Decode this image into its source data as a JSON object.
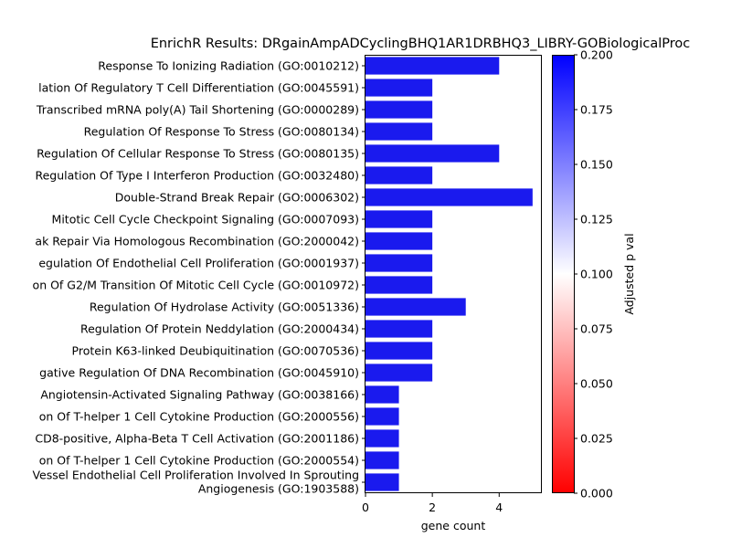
{
  "chart_data": {
    "type": "bar",
    "orientation": "horizontal",
    "title": "EnrichR Results: DRgainAmpADCyclingBHQ1AR1DRBHQ3_LIBRY-GOBiologicalProc",
    "xlabel": "gene count",
    "ylabel": "",
    "xlim": [
      0,
      5.25
    ],
    "xticks": [
      0,
      2,
      4
    ],
    "categories": [
      "Response To Ionizing Radiation (GO:0010212)",
      "lation Of Regulatory T Cell Differentiation (GO:0045591)",
      "Transcribed mRNA poly(A) Tail Shortening (GO:0000289)",
      "Regulation Of Response To Stress (GO:0080134)",
      "Regulation Of Cellular Response To Stress (GO:0080135)",
      "Regulation Of Type I Interferon Production (GO:0032480)",
      "Double-Strand Break Repair (GO:0006302)",
      "Mitotic Cell Cycle Checkpoint Signaling (GO:0007093)",
      "ak Repair Via Homologous Recombination (GO:2000042)",
      "egulation Of Endothelial Cell Proliferation (GO:0001937)",
      "on Of G2/M Transition Of Mitotic Cell Cycle (GO:0010972)",
      "Regulation Of Hydrolase Activity (GO:0051336)",
      "Regulation Of Protein Neddylation (GO:2000434)",
      "Protein K63-linked Deubiquitination (GO:0070536)",
      "gative Regulation Of DNA Recombination (GO:0045910)",
      "Angiotensin-Activated Signaling Pathway (GO:0038166)",
      "on Of T-helper 1 Cell Cytokine Production (GO:2000556)",
      "CD8-positive, Alpha-Beta T Cell Activation (GO:2001186)",
      "on Of T-helper 1 Cell Cytokine Production (GO:2000554)",
      "Vessel Endothelial Cell Proliferation Involved In Sprouting\nAngiogenesis (GO:1903588)"
    ],
    "values": [
      4,
      2,
      2,
      2,
      4,
      2,
      5,
      2,
      2,
      2,
      2,
      3,
      2,
      2,
      2,
      1,
      1,
      1,
      1,
      1
    ],
    "bar_color": "#1a1aee",
    "colorbar": {
      "label": "Adjusted p val",
      "range": [
        0.0,
        0.2
      ],
      "ticks": [
        "0.000",
        "0.025",
        "0.050",
        "0.075",
        "0.100",
        "0.125",
        "0.150",
        "0.175",
        "0.200"
      ],
      "colors": [
        "#ff0000",
        "#ffffff",
        "#0000ff"
      ]
    }
  }
}
